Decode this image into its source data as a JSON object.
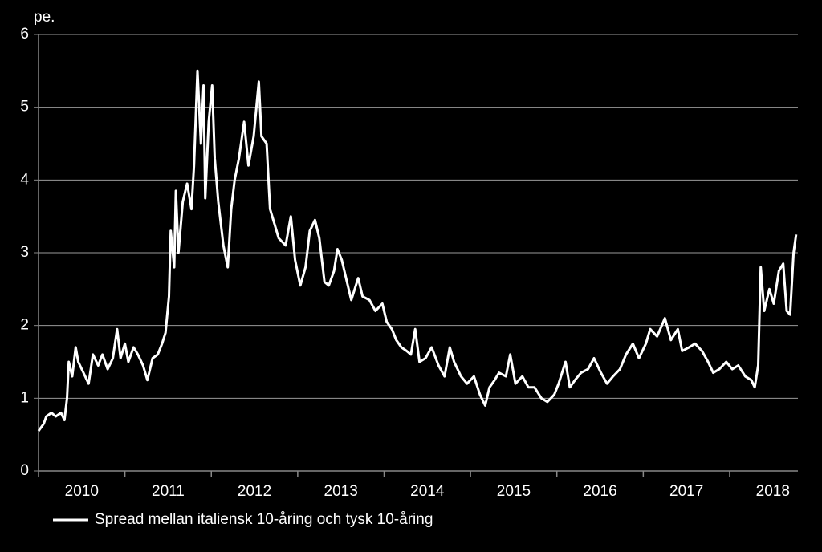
{
  "chart_data": {
    "type": "line",
    "y_label": "pe.",
    "ylim": [
      0,
      6
    ],
    "yticks": [
      0,
      1,
      2,
      3,
      4,
      5,
      6
    ],
    "xlim": [
      2010,
      2018.79
    ],
    "xticks": [
      2010,
      2011,
      2012,
      2013,
      2014,
      2015,
      2016,
      2017,
      2018
    ],
    "grid": true,
    "legend": "bottom-left",
    "x": [
      2010.0,
      2010.06,
      2010.09,
      2010.15,
      2010.2,
      2010.26,
      2010.3,
      2010.33,
      2010.35,
      2010.39,
      2010.43,
      2010.46,
      2010.52,
      2010.58,
      2010.63,
      2010.69,
      2010.74,
      2010.8,
      2010.86,
      2010.91,
      2010.95,
      2011.0,
      2011.04,
      2011.1,
      2011.15,
      2011.21,
      2011.26,
      2011.32,
      2011.38,
      2011.43,
      2011.47,
      2011.51,
      2011.53,
      2011.57,
      2011.59,
      2011.62,
      2011.67,
      2011.72,
      2011.77,
      2011.8,
      2011.84,
      2011.88,
      2011.91,
      2011.93,
      2011.97,
      2012.01,
      2012.04,
      2012.08,
      2012.14,
      2012.19,
      2012.23,
      2012.27,
      2012.32,
      2012.38,
      2012.43,
      2012.49,
      2012.55,
      2012.58,
      2012.64,
      2012.68,
      2012.73,
      2012.78,
      2012.86,
      2012.92,
      2012.97,
      2013.03,
      2013.09,
      2013.14,
      2013.2,
      2013.25,
      2013.31,
      2013.36,
      2013.42,
      2013.46,
      2013.51,
      2013.57,
      2013.62,
      2013.7,
      2013.75,
      2013.83,
      2013.9,
      2013.98,
      2014.03,
      2014.09,
      2014.14,
      2014.2,
      2014.26,
      2014.31,
      2014.36,
      2014.41,
      2014.48,
      2014.55,
      2014.63,
      2014.7,
      2014.76,
      2014.81,
      2014.89,
      2014.96,
      2015.04,
      2015.11,
      2015.17,
      2015.22,
      2015.28,
      2015.33,
      2015.41,
      2015.46,
      2015.52,
      2015.6,
      2015.67,
      2015.74,
      2015.82,
      2015.89,
      2015.97,
      2016.02,
      2016.1,
      2016.15,
      2016.21,
      2016.28,
      2016.36,
      2016.43,
      2016.51,
      2016.58,
      2016.65,
      2016.73,
      2016.8,
      2016.88,
      2016.95,
      2017.03,
      2017.08,
      2017.16,
      2017.25,
      2017.32,
      2017.4,
      2017.45,
      2017.53,
      2017.6,
      2017.68,
      2017.75,
      2017.81,
      2017.88,
      2017.96,
      2018.03,
      2018.1,
      2018.18,
      2018.25,
      2018.29,
      2018.33,
      2018.36,
      2018.4,
      2018.46,
      2018.51,
      2018.57,
      2018.62,
      2018.66,
      2018.7,
      2018.74,
      2018.77
    ],
    "series": [
      {
        "name": "Spread mellan italiensk 10-åring och tysk 10-åring",
        "color": "#ffffff",
        "values": [
          0.55,
          0.65,
          0.75,
          0.8,
          0.75,
          0.8,
          0.7,
          1.0,
          1.5,
          1.3,
          1.7,
          1.5,
          1.35,
          1.2,
          1.6,
          1.45,
          1.6,
          1.4,
          1.55,
          1.95,
          1.55,
          1.75,
          1.5,
          1.7,
          1.6,
          1.45,
          1.25,
          1.55,
          1.6,
          1.75,
          1.9,
          2.4,
          3.3,
          2.8,
          3.85,
          3.0,
          3.7,
          3.95,
          3.6,
          4.2,
          5.5,
          4.5,
          5.3,
          3.75,
          4.8,
          5.3,
          4.3,
          3.7,
          3.1,
          2.8,
          3.6,
          4.0,
          4.3,
          4.8,
          4.2,
          4.6,
          5.35,
          4.6,
          4.5,
          3.6,
          3.4,
          3.2,
          3.1,
          3.5,
          2.9,
          2.55,
          2.8,
          3.3,
          3.45,
          3.2,
          2.6,
          2.55,
          2.75,
          3.05,
          2.9,
          2.6,
          2.35,
          2.65,
          2.4,
          2.35,
          2.2,
          2.3,
          2.05,
          1.95,
          1.8,
          1.7,
          1.65,
          1.6,
          1.95,
          1.5,
          1.55,
          1.7,
          1.45,
          1.3,
          1.7,
          1.5,
          1.3,
          1.2,
          1.3,
          1.05,
          0.9,
          1.15,
          1.25,
          1.35,
          1.3,
          1.6,
          1.2,
          1.3,
          1.15,
          1.15,
          1.0,
          0.95,
          1.05,
          1.2,
          1.5,
          1.15,
          1.25,
          1.35,
          1.4,
          1.55,
          1.35,
          1.2,
          1.3,
          1.4,
          1.6,
          1.75,
          1.55,
          1.75,
          1.95,
          1.85,
          2.1,
          1.8,
          1.95,
          1.65,
          1.7,
          1.75,
          1.65,
          1.5,
          1.35,
          1.4,
          1.5,
          1.4,
          1.45,
          1.3,
          1.25,
          1.15,
          1.45,
          2.8,
          2.2,
          2.5,
          2.3,
          2.75,
          2.85,
          2.2,
          2.15,
          3.0,
          3.25
        ]
      }
    ]
  }
}
